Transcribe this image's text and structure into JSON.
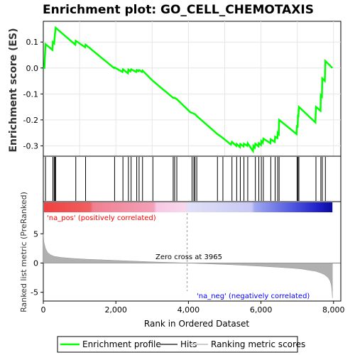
{
  "title": "Enrichment plot: GO_CELL_CHEMOTAXIS",
  "colors": {
    "enrichment_line": "#00ff00",
    "hits": "#000000",
    "metric_fill": "#b0b0b0",
    "pos_label": "#ff0000",
    "neg_label": "#0000ff"
  },
  "chart_data": [
    {
      "type": "line",
      "title": "Enrichment plot: GO_CELL_CHEMOTAXIS",
      "ylabel": "Enrichment score (ES)",
      "xlim": [
        0,
        8200
      ],
      "ylim": [
        -0.34,
        0.18
      ],
      "yticks": [
        -0.3,
        -0.2,
        -0.1,
        0.0,
        0.1
      ],
      "ytick_labels": [
        "-0.3",
        "-0.2",
        "-0.1",
        "0.0",
        "0.1"
      ],
      "grid": true,
      "series": [
        {
          "name": "Enrichment profile",
          "x": [
            0,
            30,
            60,
            250,
            265,
            300,
            320,
            340,
            880,
            895,
            1150,
            1165,
            1950,
            1965,
            2180,
            2195,
            2330,
            2345,
            2400,
            2420,
            2560,
            2575,
            2620,
            2640,
            2720,
            2735,
            3020,
            3580,
            3620,
            3680,
            4050,
            4100,
            4150,
            4180,
            4230,
            4800,
            4950,
            5170,
            5200,
            5320,
            5330,
            5420,
            5430,
            5520,
            5530,
            5620,
            5635,
            5780,
            5790,
            5830,
            5845,
            5930,
            5940,
            6000,
            6010,
            6050,
            6065,
            6260,
            6270,
            6380,
            6390,
            6450,
            6460,
            6490,
            6500,
            6980,
            6995,
            7010,
            7020,
            7030,
            7045,
            7500,
            7515,
            7640,
            7650,
            7680,
            7690,
            7760,
            7775,
            7970
          ],
          "y": [
            0.0,
            0.0,
            0.092,
            0.07,
            0.1,
            0.095,
            0.13,
            0.155,
            0.09,
            0.105,
            0.08,
            0.09,
            0.0,
            0.002,
            -0.015,
            -0.005,
            -0.02,
            -0.006,
            -0.013,
            -0.005,
            -0.015,
            -0.008,
            -0.012,
            -0.008,
            -0.015,
            -0.01,
            -0.05,
            -0.115,
            -0.115,
            -0.12,
            -0.17,
            -0.173,
            -0.176,
            -0.178,
            -0.185,
            -0.255,
            -0.27,
            -0.295,
            -0.285,
            -0.3,
            -0.293,
            -0.305,
            -0.293,
            -0.302,
            -0.292,
            -0.3,
            -0.29,
            -0.32,
            -0.3,
            -0.307,
            -0.292,
            -0.302,
            -0.29,
            -0.297,
            -0.282,
            -0.288,
            -0.272,
            -0.29,
            -0.275,
            -0.285,
            -0.265,
            -0.27,
            -0.25,
            -0.255,
            -0.2,
            -0.255,
            -0.22,
            -0.23,
            -0.18,
            -0.19,
            -0.15,
            -0.21,
            -0.15,
            -0.165,
            -0.105,
            -0.11,
            -0.04,
            -0.05,
            0.027,
            0.0
          ]
        }
      ]
    },
    {
      "type": "scatter",
      "name": "Hits",
      "xlim": [
        0,
        8200
      ],
      "x": [
        60,
        265,
        300,
        320,
        340,
        895,
        1165,
        1965,
        2195,
        2345,
        2420,
        2575,
        2640,
        2735,
        3020,
        3580,
        3620,
        3680,
        4100,
        4150,
        4180,
        4230,
        4800,
        4950,
        5200,
        5330,
        5430,
        5530,
        5635,
        5845,
        5940,
        6010,
        6065,
        6270,
        6390,
        6460,
        6500,
        6995,
        7020,
        7045,
        7515,
        7650,
        7690,
        7775
      ]
    },
    {
      "type": "area",
      "name": "Ranking metric scores",
      "ylabel": "Ranked list metric (PreRanked)",
      "xlabel": "Rank in Ordered Dataset",
      "xlim": [
        0,
        8200
      ],
      "ylim": [
        -6.5,
        10.5
      ],
      "xticks": [
        0,
        2000,
        4000,
        6000,
        8000
      ],
      "xtick_labels": [
        "0",
        "2,000",
        "4,000",
        "6,000",
        "8,000"
      ],
      "yticks": [
        -5,
        0,
        5
      ],
      "ytick_labels": [
        "-5",
        "0",
        "5"
      ],
      "x": [
        0,
        20,
        60,
        120,
        200,
        300,
        500,
        800,
        1200,
        1600,
        2000,
        2400,
        2800,
        3200,
        3600,
        3965,
        4400,
        4800,
        5200,
        5600,
        6000,
        6400,
        6800,
        7100,
        7300,
        7500,
        7650,
        7750,
        7850,
        7900,
        7940,
        7960,
        7970
      ],
      "values": [
        5.0,
        3.5,
        2.5,
        1.8,
        1.4,
        1.15,
        0.95,
        0.8,
        0.65,
        0.55,
        0.45,
        0.35,
        0.25,
        0.15,
        0.08,
        0.0,
        -0.1,
        -0.2,
        -0.3,
        -0.42,
        -0.55,
        -0.7,
        -0.85,
        -1.0,
        -1.2,
        -1.4,
        -1.7,
        -2.0,
        -2.5,
        -3.0,
        -3.8,
        -5.0,
        -6.0
      ],
      "annotations": {
        "zero_cross": "Zero cross at 3965",
        "pos": "'na_pos' (positively correlated)",
        "neg": "'na_neg' (negatively correlated)"
      }
    }
  ],
  "legend": {
    "items": [
      {
        "label": "Enrichment profile",
        "symbol": "line-green"
      },
      {
        "label": "Hits",
        "symbol": "line-black"
      },
      {
        "label": "Ranking metric scores",
        "symbol": "line-gray"
      }
    ]
  }
}
